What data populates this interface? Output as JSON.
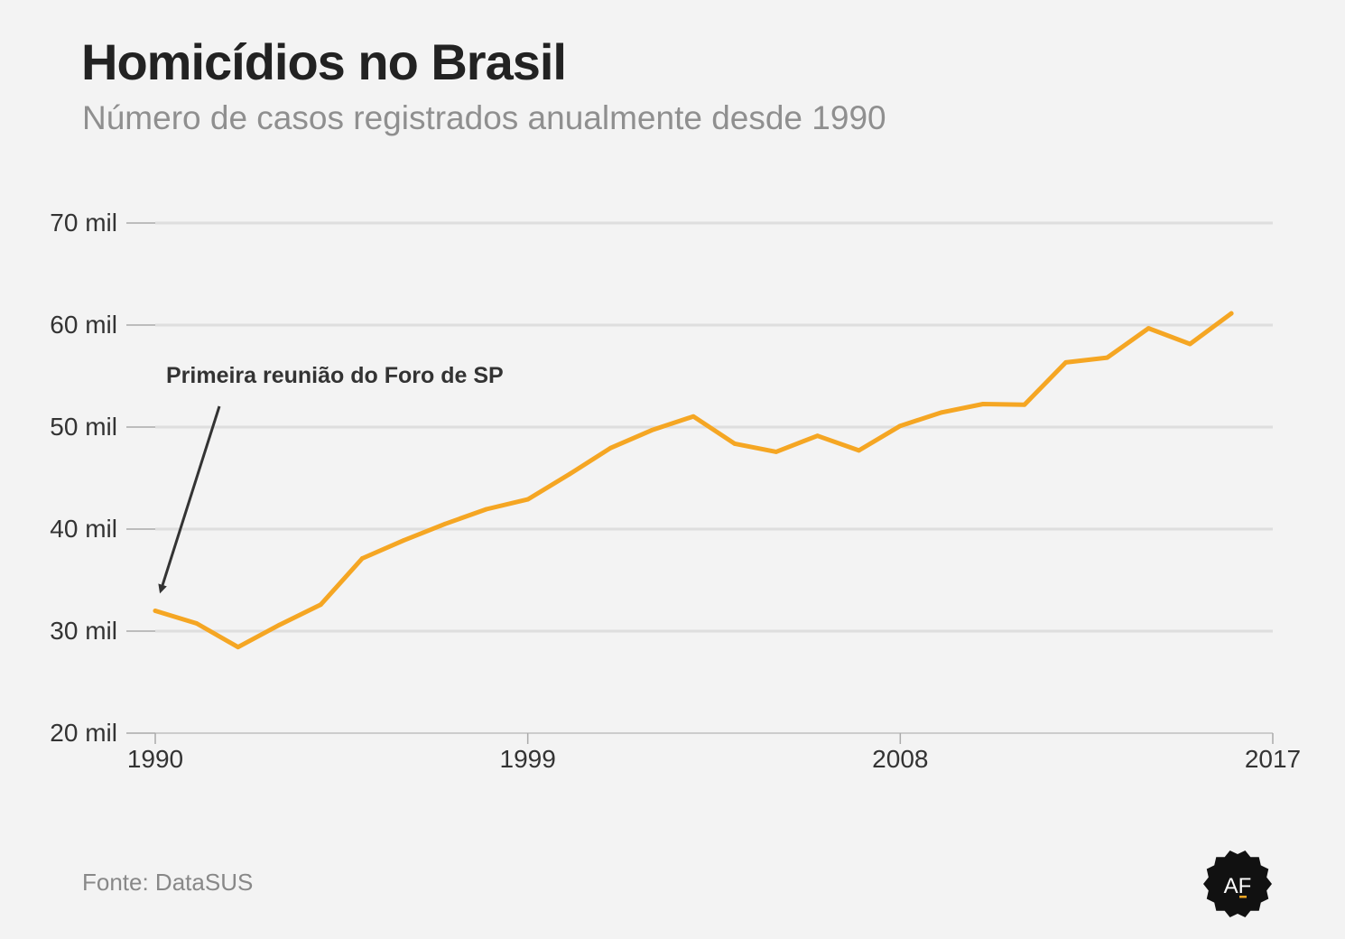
{
  "title": "Homicídios no Brasil",
  "subtitle": "Número de casos registrados anualmente desde 1990",
  "source": "Fonte: DataSUS",
  "logo": {
    "text": "AF",
    "icon": "af-seal-logo"
  },
  "colors": {
    "line": "#f5a623",
    "grid": "#dedede",
    "axis_text": "#333333",
    "annotation": "#333333",
    "background": "#f3f3f3"
  },
  "chart_data": {
    "type": "line",
    "title": "Homicídios no Brasil",
    "subtitle": "Número de casos registrados anualmente desde 1990",
    "xlabel": "",
    "ylabel": "",
    "xlim": [
      1990,
      2017
    ],
    "ylim": [
      20000,
      70000
    ],
    "grid": true,
    "x_ticks": [
      1990,
      1999,
      2008,
      2017
    ],
    "x_tick_labels": [
      "1990",
      "1999",
      "2008",
      "2017"
    ],
    "y_ticks": [
      20000,
      30000,
      40000,
      50000,
      60000,
      70000
    ],
    "y_tick_labels": [
      "20 mil",
      "30 mil",
      "40 mil",
      "50 mil",
      "60 mil",
      "70 mil"
    ],
    "series": [
      {
        "x": [
          1990,
          1991,
          1992,
          1993,
          1994,
          1995,
          1996,
          1997,
          1998,
          1999,
          2000,
          2001,
          2002,
          2003,
          2004,
          2005,
          2006,
          2007,
          2008,
          2009,
          2010,
          2011,
          2012,
          2013,
          2014,
          2015,
          2016
        ],
        "values": [
          31989,
          30750,
          28435,
          30610,
          32603,
          37128,
          38888,
          40507,
          41950,
          42914,
          45360,
          47943,
          49695,
          51043,
          48374,
          47578,
          49145,
          47707,
          50113,
          51434,
          52260,
          52198,
          56337,
          56804,
          59681,
          58138,
          61143
        ]
      }
    ],
    "annotations": [
      {
        "text": "Primeira reunião do Foro de SP",
        "x": 1990,
        "y": 31989
      }
    ]
  }
}
